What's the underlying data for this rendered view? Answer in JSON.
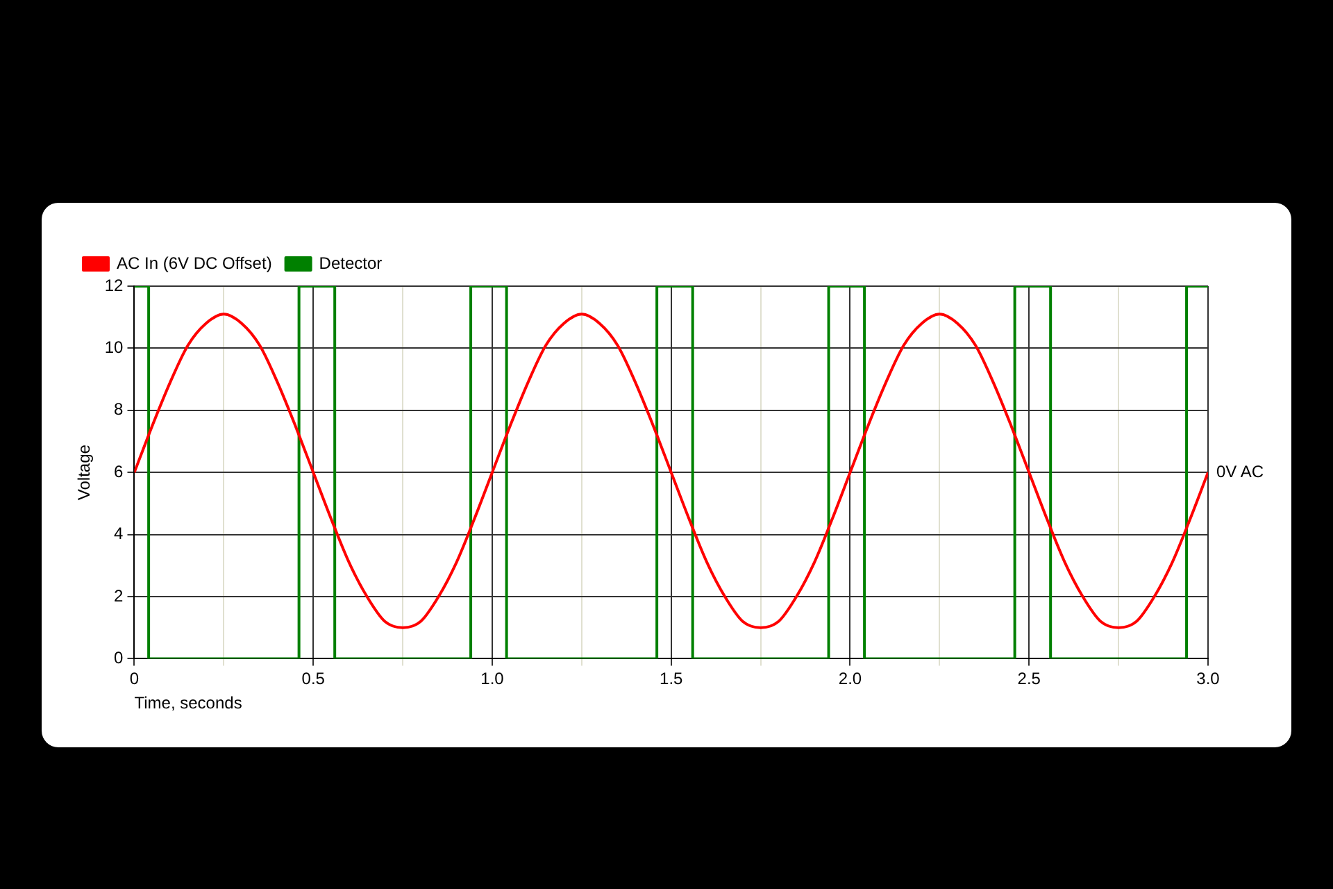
{
  "chart_data": {
    "type": "line",
    "xlabel": "Time, seconds",
    "ylabel": "Voltage",
    "xlim": [
      0,
      3
    ],
    "ylim": [
      0,
      12
    ],
    "xticks": [
      0,
      {
        "value": 0.25,
        "label": null
      },
      0.5,
      {
        "value": 0.75,
        "label": null
      },
      {
        "value": 1,
        "label": "1.0"
      },
      {
        "value": 1.25,
        "label": null
      },
      1.5,
      {
        "value": 1.75,
        "label": null
      },
      {
        "value": 2,
        "label": "2.0"
      },
      {
        "value": 2.25,
        "label": null
      },
      2.5,
      {
        "value": 2.75,
        "label": null
      },
      {
        "value": 3,
        "label": "3.0"
      }
    ],
    "yticks": [
      0,
      2,
      4,
      6,
      8,
      10,
      12
    ],
    "grid": true,
    "legend": "top left",
    "marker": "none",
    "line_style": "solid",
    "annotations": [
      {
        "text": "0V AC",
        "x": 3,
        "y": 6
      }
    ],
    "series": [
      {
        "name": "AC In (6V DC Offset)",
        "color": "#ff0000",
        "x": [
          0,
          0.05,
          0.1,
          0.15,
          0.2,
          0.25,
          0.3,
          0.35,
          0.4,
          0.45,
          0.5,
          0.55,
          0.6,
          0.65,
          0.7,
          0.75,
          0.8,
          0.85,
          0.9,
          0.95,
          1,
          1.05,
          1.1,
          1.15,
          1.2,
          1.25,
          1.3,
          1.35,
          1.4,
          1.45,
          1.5,
          1.55,
          1.6,
          1.65,
          1.7,
          1.75,
          1.8,
          1.85,
          1.9,
          1.95,
          2,
          2.05,
          2.1,
          2.15,
          2.2,
          2.25,
          2.3,
          2.35,
          2.4,
          2.45,
          2.5,
          2.55,
          2.6,
          2.65,
          2.7,
          2.75,
          2.8,
          2.85,
          2.9,
          2.95,
          3
        ],
        "values": [
          6,
          7.5,
          8.9,
          10.1,
          10.8,
          11.1,
          10.8,
          10.1,
          8.9,
          7.5,
          6,
          4.5,
          3.1,
          2,
          1.2,
          1,
          1.2,
          2,
          3.1,
          4.5,
          6,
          7.5,
          8.9,
          10.1,
          10.8,
          11.1,
          10.8,
          10.1,
          8.9,
          7.5,
          6,
          4.5,
          3.1,
          2,
          1.2,
          1,
          1.2,
          2,
          3.1,
          4.5,
          6,
          7.5,
          8.9,
          10.1,
          10.8,
          11.1,
          10.8,
          10.1,
          8.9,
          7.5,
          6,
          4.5,
          3.1,
          2,
          1.2,
          1,
          1.2,
          2,
          3.1,
          4.5,
          6
        ]
      },
      {
        "name": "Detector",
        "type": "step",
        "color": "#008000",
        "x": [
          0,
          0.04,
          0.46,
          0.56,
          0.94,
          1.04,
          1.46,
          1.56,
          1.94,
          2.04,
          2.46,
          2.56,
          2.94,
          3
        ],
        "values": [
          12,
          0,
          12,
          0,
          12,
          0,
          12,
          0,
          12,
          0,
          12,
          0,
          12,
          12
        ]
      }
    ]
  }
}
